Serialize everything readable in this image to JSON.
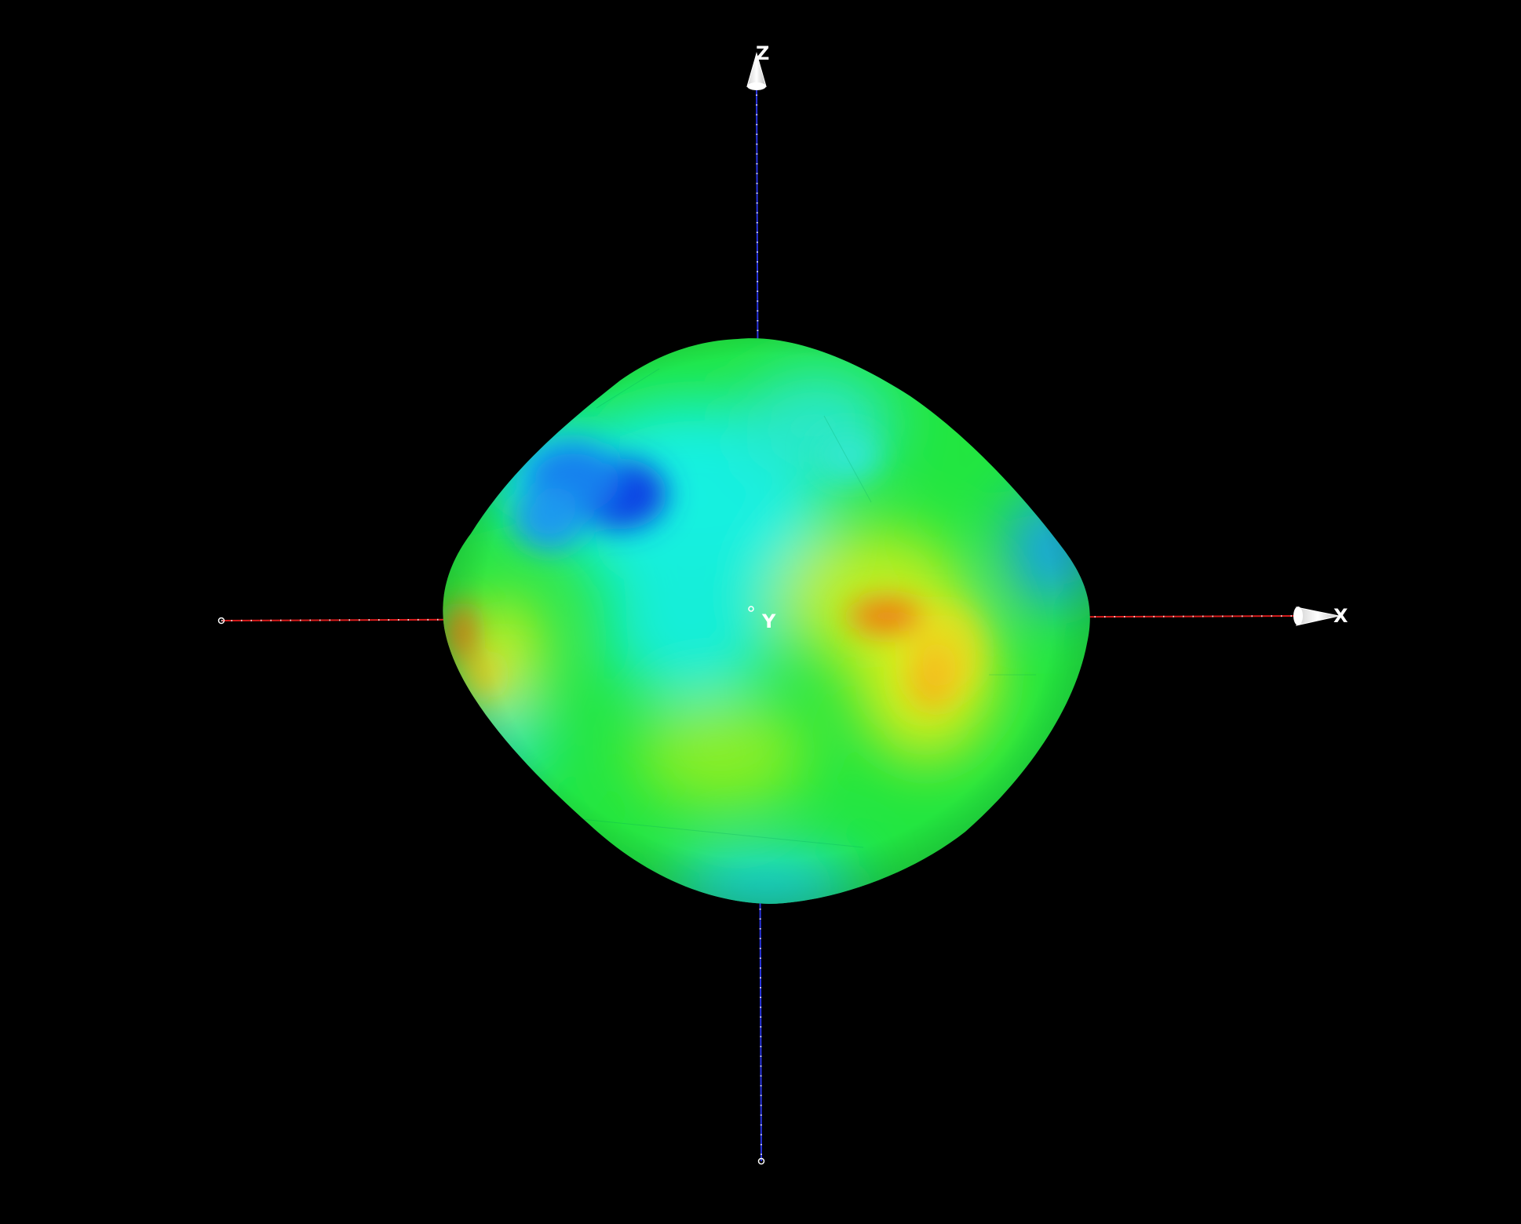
{
  "scene": {
    "background": "#000000",
    "object": "shape-model",
    "colormap": [
      "#0a36e6",
      "#16a8f0",
      "#0ff0f0",
      "#2ef068",
      "#1ee81e",
      "#b4ee1e",
      "#f5f01e",
      "#f07a14"
    ]
  },
  "axes": {
    "x": {
      "label": "X",
      "color": "#d81b1b",
      "tick_color": "#ffffff"
    },
    "y": {
      "label": "Y",
      "color": "#ffffff"
    },
    "z": {
      "label": "Z",
      "color": "#2a35e0",
      "tick_color": "#ffffff"
    }
  }
}
